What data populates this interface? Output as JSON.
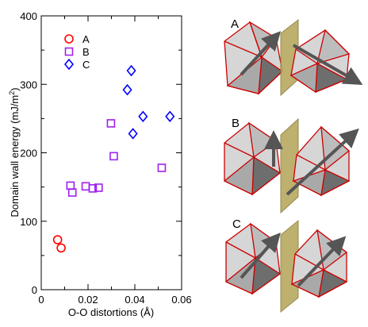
{
  "chart_data": {
    "type": "scatter",
    "xlabel": "O-O distortions (Å)",
    "ylabel": "Domain wall energy (mJ/m",
    "ylabel_sup": "2",
    "ylabel_close": ")",
    "xlim": [
      0,
      0.06
    ],
    "ylim": [
      0,
      400
    ],
    "xticks": [
      {
        "value": 0,
        "label": "0"
      },
      {
        "value": 0.02,
        "label": "0.02"
      },
      {
        "value": 0.04,
        "label": "0.04"
      },
      {
        "value": 0.06,
        "label": "0.06"
      }
    ],
    "yticks": [
      {
        "value": 0,
        "label": "0"
      },
      {
        "value": 100,
        "label": "100"
      },
      {
        "value": 200,
        "label": "200"
      },
      {
        "value": 300,
        "label": "300"
      },
      {
        "value": 400,
        "label": "400"
      }
    ],
    "legend_position": "top-left",
    "series": [
      {
        "name": "A",
        "marker": "circle",
        "color": "#ff0000",
        "points": [
          [
            0.007,
            73
          ],
          [
            0.0085,
            61
          ]
        ]
      },
      {
        "name": "B",
        "marker": "square",
        "color": "#a020f0",
        "points": [
          [
            0.0125,
            152
          ],
          [
            0.0133,
            142
          ],
          [
            0.019,
            151
          ],
          [
            0.022,
            148
          ],
          [
            0.0245,
            149
          ],
          [
            0.0298,
            243
          ],
          [
            0.031,
            195
          ],
          [
            0.0515,
            178
          ]
        ]
      },
      {
        "name": "C",
        "marker": "diamond",
        "color": "#0000ff",
        "points": [
          [
            0.0368,
            292
          ],
          [
            0.0385,
            320
          ],
          [
            0.0392,
            228
          ],
          [
            0.0435,
            253
          ],
          [
            0.055,
            253
          ]
        ]
      }
    ]
  },
  "panels": [
    {
      "label": "A",
      "arrows": "both-in-plane"
    },
    {
      "label": "B",
      "arrows": "up-and-diagonal"
    },
    {
      "label": "C",
      "arrows": "both-tilted-up"
    }
  ],
  "colors": {
    "octahedron_edge": "#cc0000",
    "face_light": "#d6d6d6",
    "face_mid": "#a9a9a9",
    "face_dark": "#6e6e6e",
    "wall": "#b8a860",
    "arrow": "#555555"
  }
}
